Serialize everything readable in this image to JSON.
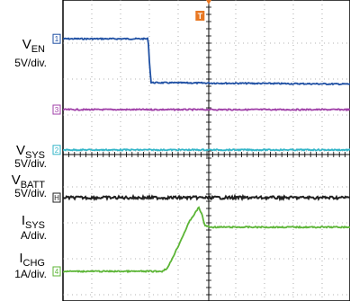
{
  "chart_data": {
    "type": "line",
    "title": "",
    "xlabel": "",
    "ylabel": "",
    "grid": true,
    "grid_divisions": {
      "x": 5,
      "y": 8
    },
    "axes": {
      "x_range": [
        0,
        5
      ],
      "y_range": [
        -4,
        4
      ]
    },
    "trigger_marker": {
      "label": "T",
      "color": "#e87722",
      "x": 2.38
    },
    "series": [
      {
        "name": "V_EN",
        "name_main": "V",
        "name_sub": "EN",
        "scale": "5V/div.",
        "marker": "1",
        "color": "#1e4fa3",
        "x": [
          0,
          1.48,
          1.5,
          1.53,
          5
        ],
        "y": [
          3.22,
          3.22,
          2.6,
          2.0,
          1.96
        ]
      },
      {
        "name": "V_SYS",
        "name_main": "V",
        "name_sub": "SYS",
        "scale": "5V/div.",
        "marker": "3",
        "color": "#a040a8",
        "x": [
          0,
          5
        ],
        "y": [
          1.25,
          1.25
        ]
      },
      {
        "name": "V_BATT",
        "name_main": "V",
        "name_sub": "BATT",
        "scale": "5V/div.",
        "marker": "2",
        "color": "#33b5c8",
        "x": [
          0,
          5
        ],
        "y": [
          0.13,
          0.13
        ]
      },
      {
        "name": "I_SYS",
        "name_main": "I",
        "name_sub": "SYS",
        "scale": "A/div.",
        "marker": "H",
        "color": "#222222",
        "x": [
          0,
          5
        ],
        "y": [
          -1.2,
          -1.2
        ]
      },
      {
        "name": "I_CHG",
        "name_main": "I",
        "name_sub": "CHG",
        "scale": "1A/div.",
        "marker": "4",
        "color": "#5cb536",
        "x": [
          0,
          1.72,
          1.82,
          2.0,
          2.2,
          2.36,
          2.42,
          2.46,
          2.56,
          5
        ],
        "y": [
          -3.25,
          -3.25,
          -3.15,
          -2.55,
          -1.85,
          -1.47,
          -1.7,
          -1.97,
          -2.02,
          -2.02
        ]
      }
    ]
  }
}
